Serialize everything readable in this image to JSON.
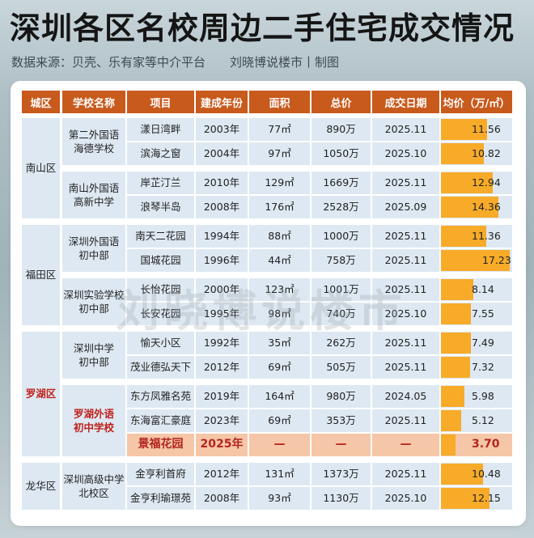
{
  "title": "深圳各区名校周边二手住宅成交情况",
  "subtitle": {
    "source": "数据来源：贝壳、乐有家等中介平台",
    "credit": "刘晓博说楼市丨制图"
  },
  "watermark": "刘晓博说楼市",
  "colors": {
    "header_bg": "#c85a1c",
    "cell_bg": "#dde8f2",
    "bar": "#f7ab28",
    "highlight_bg": "#f6c6a8",
    "highlight_text": "#b3261e"
  },
  "table": {
    "headers": [
      "城区",
      "学校名称",
      "项目",
      "建成年份",
      "面积",
      "总价",
      "成交日期",
      "均价（万/㎡）"
    ],
    "districts": [
      {
        "name": "南山区",
        "highlight": false
      },
      {
        "name": "福田区",
        "highlight": false
      },
      {
        "name": "罗湖区",
        "highlight": true
      },
      {
        "name": "龙华区",
        "highlight": false
      }
    ],
    "schools": [
      {
        "name": "第二外国语\n海德学校",
        "district": "南山区",
        "highlight": false
      },
      {
        "name": "南山外国语\n高新中学",
        "district": "南山区",
        "highlight": false
      },
      {
        "name": "深圳外国语\n初中部",
        "district": "福田区",
        "highlight": false
      },
      {
        "name": "深圳实验学校\n初中部",
        "district": "福田区",
        "highlight": false
      },
      {
        "name": "深圳中学\n初中部",
        "district": "罗湖区",
        "highlight": false
      },
      {
        "name": "罗湖外语\n初中学校",
        "district": "罗湖区",
        "highlight": true
      },
      {
        "name": "深圳高级中学\n北校区",
        "district": "龙华区",
        "highlight": false
      }
    ],
    "rows": [
      {
        "project": "漾日湾畔",
        "year": "2003年",
        "area": "77㎡",
        "total": "890万",
        "date": "2025.11",
        "price": "11.56",
        "highlight": false
      },
      {
        "project": "滨海之窗",
        "year": "2004年",
        "area": "97㎡",
        "total": "1050万",
        "date": "2025.10",
        "price": "10.82",
        "highlight": false
      },
      {
        "project": "岸芷汀兰",
        "year": "2010年",
        "area": "129㎡",
        "total": "1669万",
        "date": "2025.11",
        "price": "12.94",
        "highlight": false
      },
      {
        "project": "浪琴半岛",
        "year": "2008年",
        "area": "176㎡",
        "total": "2528万",
        "date": "2025.09",
        "price": "14.36",
        "highlight": false
      },
      {
        "project": "南天二花园",
        "year": "1994年",
        "area": "88㎡",
        "total": "1000万",
        "date": "2025.11",
        "price": "11.36",
        "highlight": false
      },
      {
        "project": "国城花园",
        "year": "1996年",
        "area": "44㎡",
        "total": "758万",
        "date": "2025.11",
        "price": "17.23",
        "highlight": false
      },
      {
        "project": "长怡花园",
        "year": "2000年",
        "area": "123㎡",
        "total": "1001万",
        "date": "2025.11",
        "price": "8.14",
        "highlight": false
      },
      {
        "project": "长安花园",
        "year": "1995年",
        "area": "98㎡",
        "total": "740万",
        "date": "2025.10",
        "price": "7.55",
        "highlight": false
      },
      {
        "project": "愉天小区",
        "year": "1992年",
        "area": "35㎡",
        "total": "262万",
        "date": "2025.11",
        "price": "7.49",
        "highlight": false
      },
      {
        "project": "茂业德弘天下",
        "year": "2012年",
        "area": "69㎡",
        "total": "505万",
        "date": "2025.11",
        "price": "7.32",
        "highlight": false
      },
      {
        "project": "东方凤雅名苑",
        "year": "2019年",
        "area": "164㎡",
        "total": "980万",
        "date": "2024.05",
        "price": "5.98",
        "highlight": false
      },
      {
        "project": "东海富汇豪庭",
        "year": "2023年",
        "area": "69㎡",
        "total": "353万",
        "date": "2025.11",
        "price": "5.12",
        "highlight": false
      },
      {
        "project": "景福花园",
        "year": "2025年",
        "area": "—",
        "total": "—",
        "date": "—",
        "price": "3.70",
        "highlight": true
      },
      {
        "project": "金亨利首府",
        "year": "2012年",
        "area": "131㎡",
        "total": "1373万",
        "date": "2025.11",
        "price": "10.48",
        "highlight": false
      },
      {
        "project": "金亨利瑜璟苑",
        "year": "2008年",
        "area": "93㎡",
        "total": "1130万",
        "date": "2025.10",
        "price": "12.15",
        "highlight": false
      }
    ]
  },
  "chart_data": {
    "type": "table",
    "title": "深圳各区名校周边二手住宅成交情况",
    "subtitle": "数据来源：贝壳、乐有家等中介平台  刘晓博说楼市丨制图",
    "columns": [
      "城区",
      "学校名称",
      "项目",
      "建成年份",
      "面积",
      "总价",
      "成交日期",
      "均价（万/㎡）"
    ],
    "rows": [
      [
        "南山区",
        "第二外国语海德学校",
        "漾日湾畔",
        "2003年",
        "77㎡",
        "890万",
        "2025.11",
        11.56
      ],
      [
        "南山区",
        "第二外国语海德学校",
        "滨海之窗",
        "2004年",
        "97㎡",
        "1050万",
        "2025.10",
        10.82
      ],
      [
        "南山区",
        "南山外国语高新中学",
        "岸芷汀兰",
        "2010年",
        "129㎡",
        "1669万",
        "2025.11",
        12.94
      ],
      [
        "南山区",
        "南山外国语高新中学",
        "浪琴半岛",
        "2008年",
        "176㎡",
        "2528万",
        "2025.09",
        14.36
      ],
      [
        "福田区",
        "深圳外国语初中部",
        "南天二花园",
        "1994年",
        "88㎡",
        "1000万",
        "2025.11",
        11.36
      ],
      [
        "福田区",
        "深圳外国语初中部",
        "国城花园",
        "1996年",
        "44㎡",
        "758万",
        "2025.11",
        17.23
      ],
      [
        "福田区",
        "深圳实验学校初中部",
        "长怡花园",
        "2000年",
        "123㎡",
        "1001万",
        "2025.11",
        8.14
      ],
      [
        "福田区",
        "深圳实验学校初中部",
        "长安花园",
        "1995年",
        "98㎡",
        "740万",
        "2025.10",
        7.55
      ],
      [
        "罗湖区",
        "深圳中学初中部",
        "愉天小区",
        "1992年",
        "35㎡",
        "262万",
        "2025.11",
        7.49
      ],
      [
        "罗湖区",
        "深圳中学初中部",
        "茂业德弘天下",
        "2012年",
        "69㎡",
        "505万",
        "2025.11",
        7.32
      ],
      [
        "罗湖区",
        "罗湖外语初中学校",
        "东方凤雅名苑",
        "2019年",
        "164㎡",
        "980万",
        "2024.05",
        5.98
      ],
      [
        "罗湖区",
        "罗湖外语初中学校",
        "东海富汇豪庭",
        "2023年",
        "69㎡",
        "353万",
        "2025.11",
        5.12
      ],
      [
        "罗湖区",
        "罗湖外语初中学校",
        "景福花园",
        "2025年",
        "—",
        "—",
        "—",
        3.7
      ],
      [
        "龙华区",
        "深圳高级中学北校区",
        "金亨利首府",
        "2012年",
        "131㎡",
        "1373万",
        "2025.11",
        10.48
      ],
      [
        "龙华区",
        "深圳高级中学北校区",
        "金亨利瑜璟苑",
        "2008年",
        "93㎡",
        "1130万",
        "2025.10",
        12.15
      ]
    ],
    "bar_column": "均价（万/㎡）",
    "bar_values": [
      11.56,
      10.82,
      12.94,
      14.36,
      11.36,
      17.23,
      8.14,
      7.55,
      7.49,
      7.32,
      5.98,
      5.12,
      3.7,
      10.48,
      12.15
    ],
    "highlighted_row": "景福花园"
  }
}
